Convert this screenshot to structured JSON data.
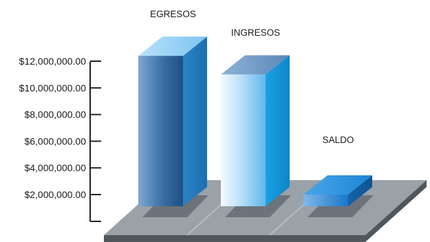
{
  "chart_data": {
    "type": "bar",
    "categories": [
      "EGRESOS",
      "INGRESOS",
      "SALDO"
    ],
    "values": [
      12400000,
      11000000,
      2000000
    ],
    "ylim": [
      0,
      12000000
    ],
    "y_ticks": [
      "$2,000,000.00",
      "$4,000,000.00",
      "$6,000,000.00",
      "$8,000,000.00",
      "$10,000,000.00",
      "$12,000,000.00"
    ],
    "y_tick_values": [
      2000000,
      4000000,
      6000000,
      8000000,
      10000000,
      12000000
    ],
    "style": "3d",
    "grid": false,
    "colors": {
      "floor_top": "#9aa1a7",
      "floor_edge": "#4f565c",
      "floor_line": "#b7bdc2",
      "shadow": "#6c737a",
      "axis": "#222222"
    }
  }
}
